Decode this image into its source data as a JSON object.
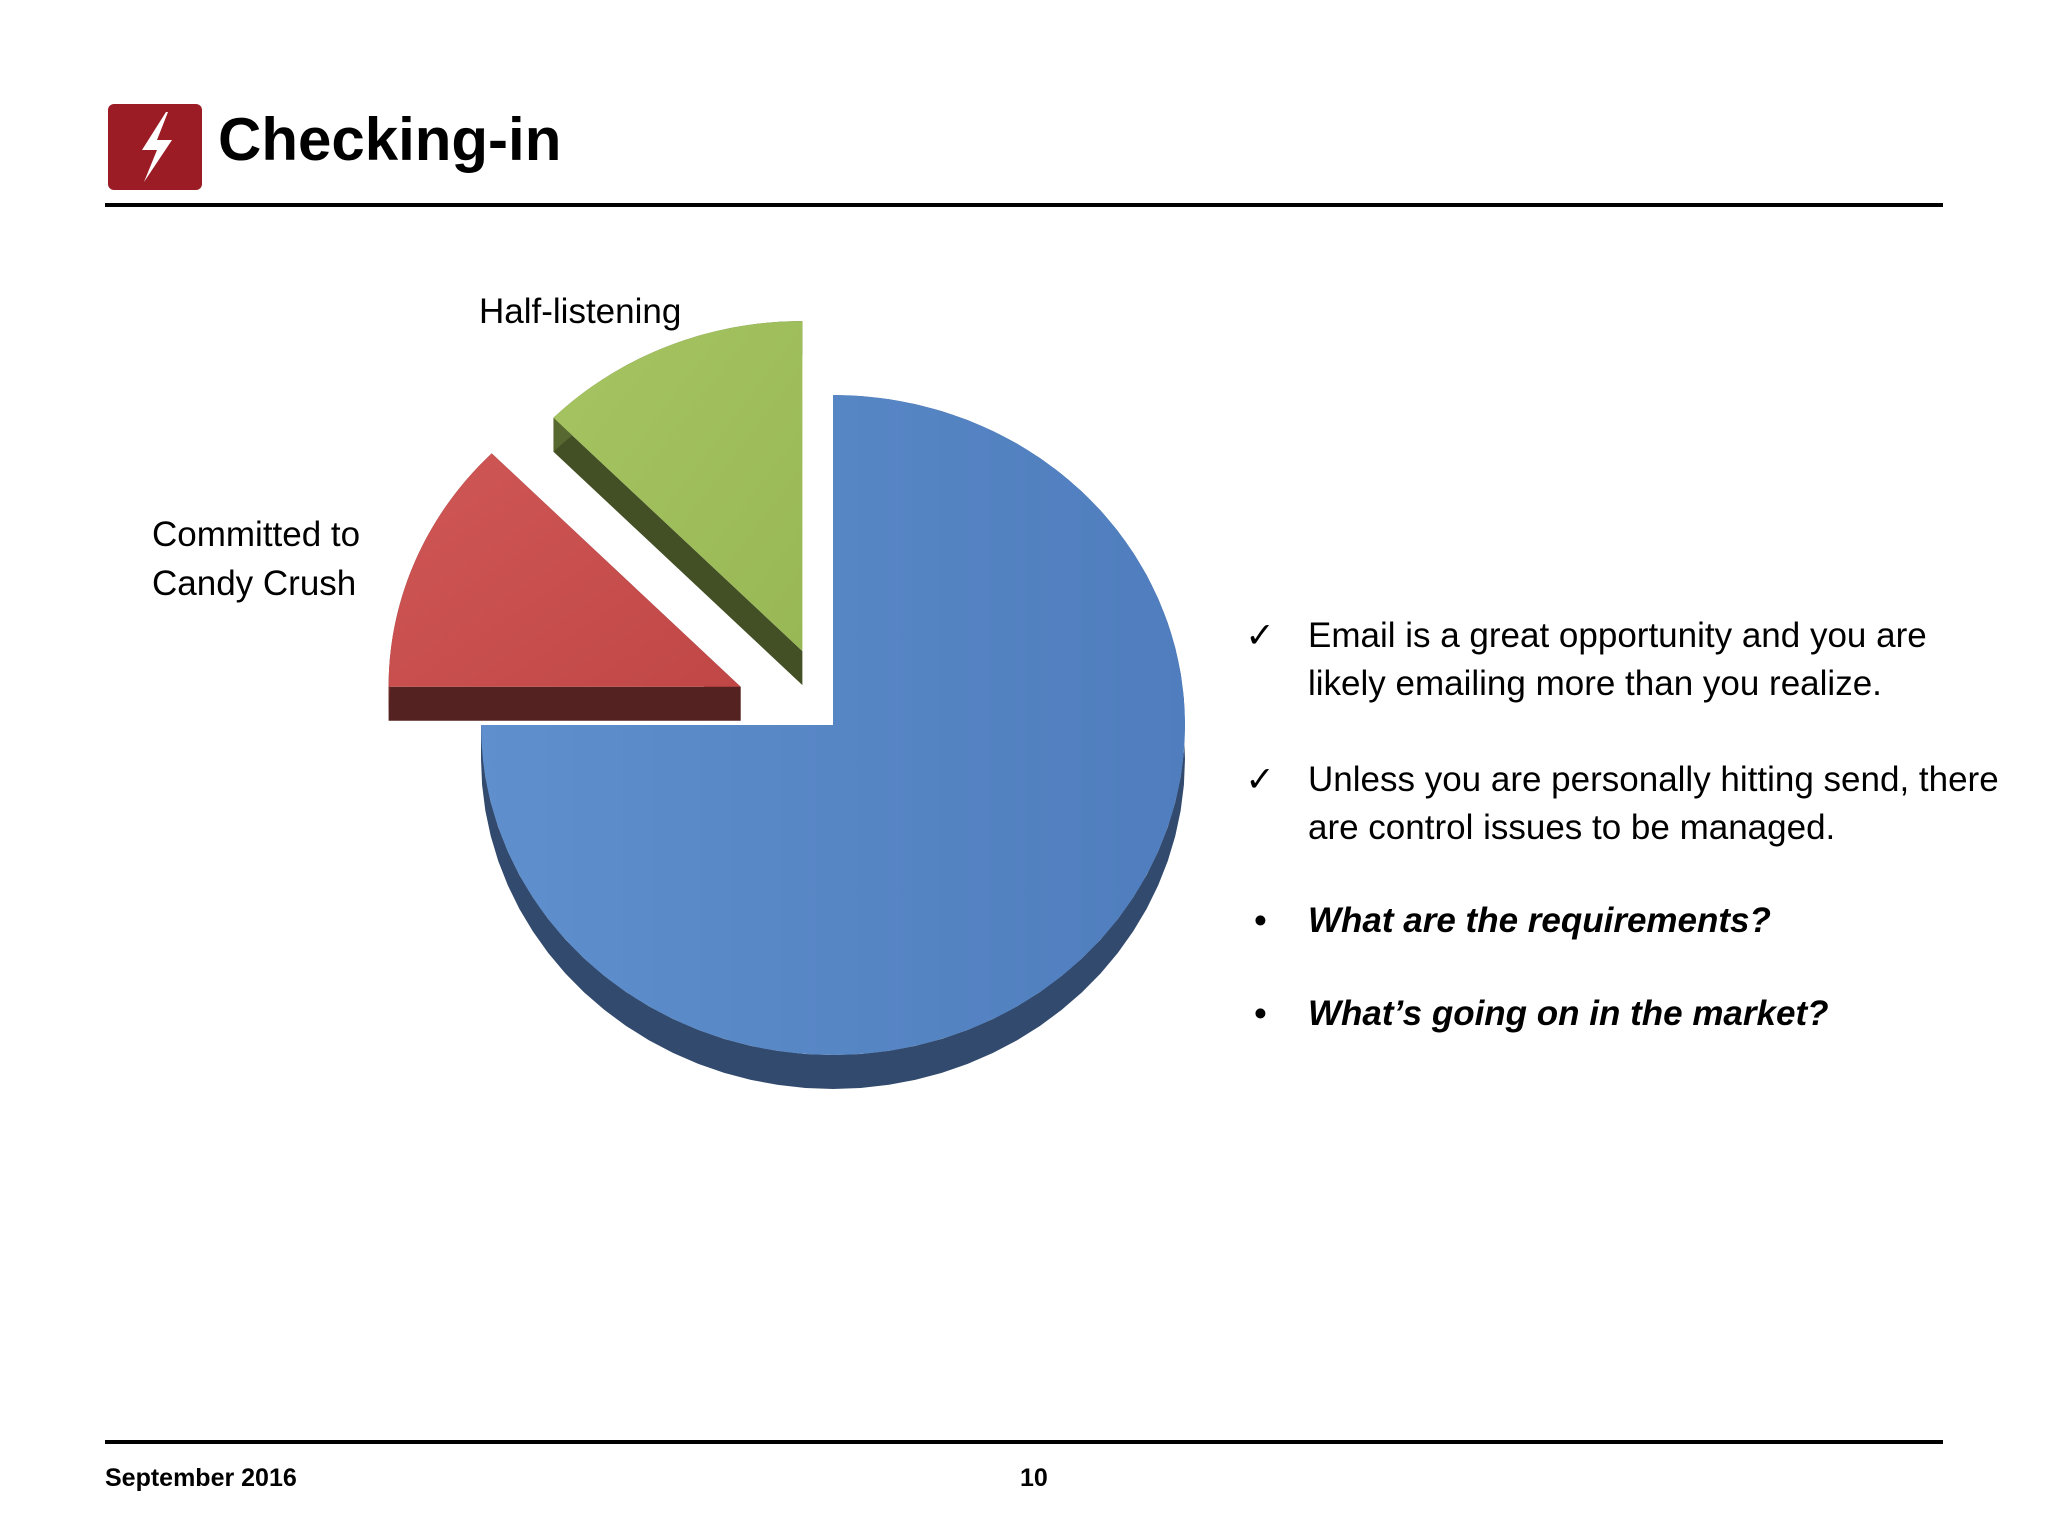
{
  "slide": {
    "title": "Checking-in",
    "logo_icon": "lightning-bolt-icon",
    "logo_color": "#9b1c24",
    "footer_date": "September 2016",
    "page_number": "10"
  },
  "chart_data": {
    "type": "pie",
    "title": "",
    "style": "3d-exploded",
    "slices": [
      {
        "label": "",
        "value": 75,
        "color": "#5a87c6"
      },
      {
        "label": "Committed to\nCandy Crush",
        "value": 12.5,
        "color": "#c9504e"
      },
      {
        "label": "Half-listening",
        "value": 12.5,
        "color": "#9fbf59"
      }
    ]
  },
  "bullets": [
    {
      "marker": "✓",
      "text": "Email is a great opportunity and you are likely emailing more than you realize.",
      "style": "normal"
    },
    {
      "marker": "✓",
      "text": "Unless you are personally hitting send, there are control issues to be managed.",
      "style": "normal"
    },
    {
      "marker": "•",
      "text": "What are the requirements?",
      "style": "bold-italic"
    },
    {
      "marker": "•",
      "text": "What’s going on in the market?",
      "style": "bold-italic"
    }
  ]
}
